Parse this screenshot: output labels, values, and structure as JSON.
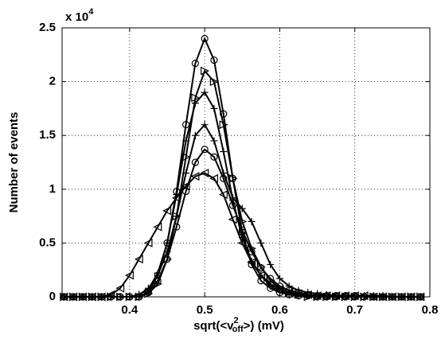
{
  "chart_data": {
    "type": "line",
    "ylabel": "Number of events",
    "xlabel": [
      "sqrt(<v",
      "2",
      "off",
      ">) (mV)"
    ],
    "y_multiplier": [
      "x 10",
      "4"
    ],
    "x": [
      0.3125,
      0.325,
      0.3375,
      0.35,
      0.3625,
      0.375,
      0.3875,
      0.4,
      0.4125,
      0.425,
      0.4375,
      0.45,
      0.4625,
      0.475,
      0.4875,
      0.5,
      0.5125,
      0.525,
      0.5375,
      0.55,
      0.5625,
      0.575,
      0.5875,
      0.6,
      0.6125,
      0.625,
      0.6375,
      0.65,
      0.6625,
      0.675,
      0.6875,
      0.7,
      0.7125,
      0.725,
      0.7375,
      0.75,
      0.7625,
      0.775,
      0.7875
    ],
    "series": [
      {
        "color": "#000000",
        "marker": "o",
        "values": [
          0,
          0,
          0,
          0,
          0,
          0,
          0,
          0,
          0,
          0.05,
          0.2,
          0.5,
          0.98,
          1.6,
          2.17,
          2.4,
          2.2,
          1.7,
          1.1,
          0.6,
          0.3,
          0.15,
          0.08,
          0.04,
          0.02,
          0.01,
          0.01,
          0,
          0,
          0,
          0,
          0,
          0,
          0,
          0,
          0,
          0,
          0,
          0
        ]
      },
      {
        "color": "#000000",
        "marker": "<",
        "values": [
          0,
          0,
          0,
          0,
          0,
          0.02,
          0.08,
          0.2,
          0.35,
          0.5,
          0.65,
          0.8,
          0.92,
          1.03,
          1.12,
          1.15,
          1.1,
          0.95,
          0.72,
          0.5,
          0.32,
          0.2,
          0.12,
          0.07,
          0.04,
          0.03,
          0.02,
          0.01,
          0.01,
          0.01,
          0.01,
          0.01,
          0.01,
          0,
          0,
          0,
          0,
          0,
          0
        ]
      },
      {
        "color": "#000000",
        "marker": ">",
        "values": [
          0,
          0,
          0,
          0,
          0,
          0,
          0,
          0,
          0,
          0.03,
          0.12,
          0.35,
          0.75,
          1.3,
          1.85,
          2.1,
          2.0,
          1.6,
          1.1,
          0.7,
          0.45,
          0.28,
          0.15,
          0.08,
          0.04,
          0.02,
          0,
          0,
          0,
          0,
          0,
          0,
          0,
          0,
          0,
          0,
          0,
          0,
          0
        ]
      },
      {
        "color": "#000000",
        "marker": "+",
        "values": [
          0,
          0,
          0,
          0,
          0,
          0,
          0,
          0,
          0.02,
          0.08,
          0.2,
          0.42,
          0.75,
          1.15,
          1.5,
          1.6,
          1.45,
          1.15,
          0.92,
          0.82,
          0.7,
          0.5,
          0.3,
          0.17,
          0.1,
          0.06,
          0.04,
          0.03,
          0.02,
          0.01,
          0.01,
          0.01,
          0.01,
          0.01,
          0.01,
          0,
          0,
          0,
          0
        ]
      },
      {
        "color": "#000000",
        "marker": "o",
        "values": [
          0,
          0,
          0,
          0,
          0,
          0,
          0,
          0,
          0,
          0.04,
          0.15,
          0.35,
          0.65,
          0.98,
          1.25,
          1.37,
          1.3,
          1.1,
          0.85,
          0.62,
          0.42,
          0.27,
          0.17,
          0.1,
          0.06,
          0.04,
          0.02,
          0.01,
          0.01,
          0.01,
          0.01,
          0.01,
          0,
          0,
          0,
          0,
          0,
          0,
          0
        ]
      },
      {
        "color": "#000000",
        "marker": "+",
        "values": [
          0,
          0,
          0,
          0,
          0,
          0,
          0,
          0,
          0.02,
          0.07,
          0.22,
          0.5,
          0.95,
          1.45,
          1.8,
          1.9,
          1.75,
          1.35,
          0.9,
          0.55,
          0.33,
          0.2,
          0.1,
          0.05,
          0.03,
          0.01,
          0.01,
          0.01,
          0.01,
          0,
          0,
          0,
          0,
          0,
          0,
          0,
          0,
          0,
          0
        ]
      }
    ],
    "xlim": [
      0.31,
      0.8
    ],
    "xticks": [
      0.4,
      0.5,
      0.6,
      0.7,
      0.8
    ],
    "ylim": [
      0,
      2.5
    ],
    "yticks": [
      0,
      0.5,
      1,
      1.5,
      2,
      2.5
    ],
    "grid": true
  }
}
